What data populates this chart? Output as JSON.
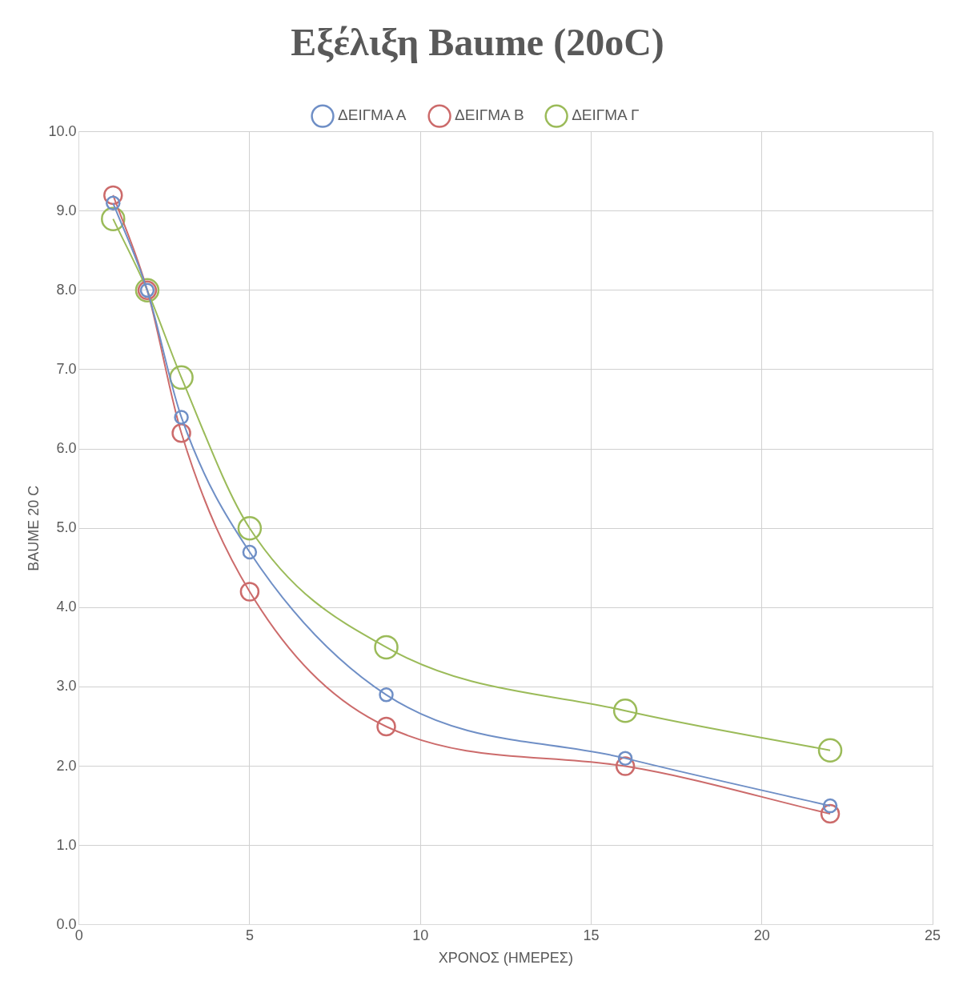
{
  "chart_data": {
    "type": "line",
    "title": "Εξέλιξη Baume (20oC)",
    "xlabel": "ΧΡΟΝΟΣ (ΗΜΕΡΕΣ)",
    "ylabel": "BAUME 20 C",
    "x": [
      1,
      2,
      3,
      5,
      9,
      16,
      22
    ],
    "series": [
      {
        "name": "ΔΕΙΓΜΑ Α",
        "color": "#6f8fc6",
        "values": [
          9.1,
          8.0,
          6.4,
          4.7,
          2.9,
          2.1,
          1.5
        ]
      },
      {
        "name": "ΔΕΙΓΜΑ Β",
        "color": "#cc6b6b",
        "values": [
          9.2,
          8.0,
          6.2,
          4.2,
          2.5,
          2.0,
          1.4
        ]
      },
      {
        "name": "ΔΕΙΓΜΑ Γ",
        "color": "#9bbb59",
        "values": [
          8.9,
          8.0,
          6.9,
          5.0,
          3.5,
          2.7,
          2.2
        ]
      }
    ],
    "xlim": [
      0,
      25
    ],
    "xticks": [
      0,
      5,
      10,
      15,
      20,
      25
    ],
    "ylim": [
      0,
      10
    ],
    "yticks": [
      {
        "value": 0,
        "label": "0.0"
      },
      {
        "value": 1,
        "label": "1.0"
      },
      {
        "value": 2,
        "label": "2.0"
      },
      {
        "value": 3,
        "label": "3.0"
      },
      {
        "value": 4,
        "label": "4.0"
      },
      {
        "value": 5,
        "label": "5.0"
      },
      {
        "value": 6,
        "label": "6.0"
      },
      {
        "value": 7,
        "label": "7.0"
      },
      {
        "value": 8,
        "label": "8.0"
      },
      {
        "value": 9,
        "label": "9.0"
      },
      {
        "value": 10,
        "label": "10.0"
      }
    ],
    "grid": true,
    "legend": "top",
    "marker": "circle",
    "line_style": "solid"
  }
}
